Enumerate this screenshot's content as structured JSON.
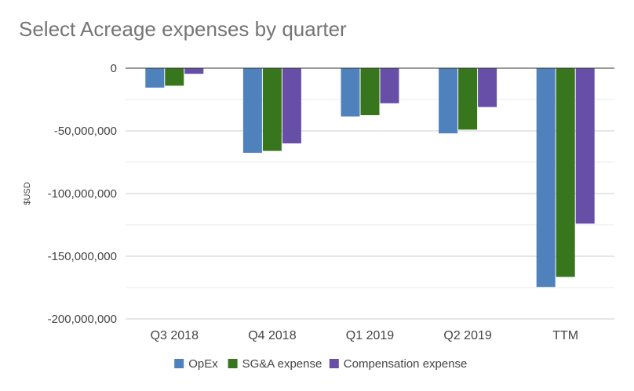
{
  "chart_data": {
    "type": "bar",
    "title": "Select Acreage expenses by quarter",
    "xlabel": "",
    "ylabel": "$USD",
    "categories": [
      "Q3 2018",
      "Q4 2018",
      "Q1 2019",
      "Q2 2019",
      "TTM"
    ],
    "series": [
      {
        "name": "OpEx",
        "color": "#4f81bd",
        "values": [
          -15500000,
          -67500000,
          -38500000,
          -52000000,
          -174500000
        ]
      },
      {
        "name": "SG&A expense",
        "color": "#38761d",
        "values": [
          -14000000,
          -66000000,
          -37500000,
          -49000000,
          -166500000
        ]
      },
      {
        "name": "Compensation expense",
        "color": "#674ea7",
        "values": [
          -4500000,
          -60000000,
          -28000000,
          -31000000,
          -124000000
        ]
      }
    ],
    "ylim": [
      -200000000,
      0
    ],
    "yticks": [
      0,
      -50000000,
      -100000000,
      -150000000,
      -200000000
    ],
    "ytick_labels": [
      "0",
      "-50,000,000",
      "-100,000,000",
      "-150,000,000",
      "-200,000,000"
    ],
    "grid": true,
    "legend_position": "bottom"
  }
}
